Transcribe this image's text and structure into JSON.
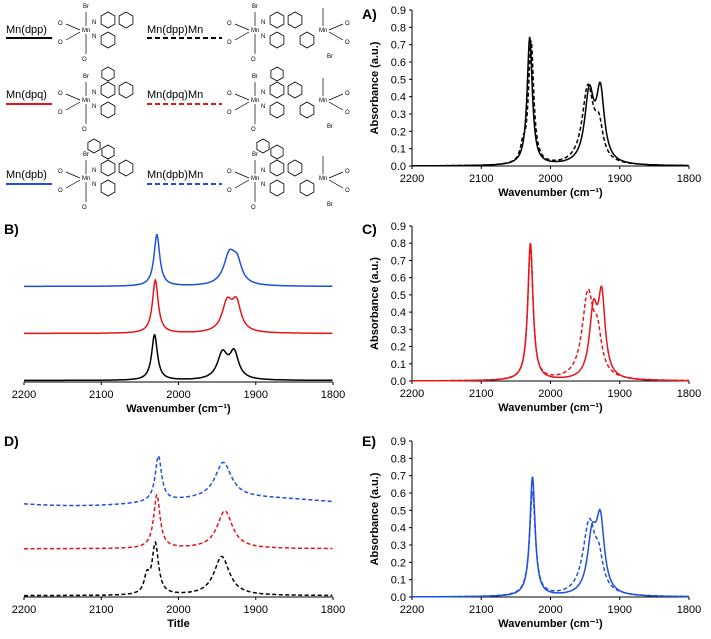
{
  "colors": {
    "black": "#000000",
    "red": "#e8141b",
    "blue": "#1f4fe0"
  },
  "legend": [
    {
      "label": "Mn(dpp)",
      "color": "black",
      "dashed": false
    },
    {
      "label": "Mn(dpp)Mn",
      "color": "black",
      "dashed": true
    },
    {
      "label": "Mn(dpq)",
      "color": "red",
      "dashed": false
    },
    {
      "label": "Mn(dpq)Mn",
      "color": "red",
      "dashed": true
    },
    {
      "label": "Mn(dpb)",
      "color": "blue",
      "dashed": false
    },
    {
      "label": "Mn(dpb)Mn",
      "color": "blue",
      "dashed": true
    }
  ],
  "structure_icons": [
    "mn-dpp-structure-icon",
    "mn-dpp-mn-structure-icon",
    "mn-dpq-structure-icon",
    "mn-dpq-mn-structure-icon",
    "mn-dpb-structure-icon",
    "mn-dpb-mn-structure-icon"
  ],
  "chem_labels": {
    "mn": "Mn",
    "br": "Br",
    "n": "N",
    "co": "CO"
  },
  "chart_data": [
    {
      "panel": "A)",
      "type": "line",
      "xlabel": "Wavenumber (cm⁻¹)",
      "ylabel": "Absorbance (a.u.)",
      "xlim": [
        2200,
        1800
      ],
      "ylim": [
        0,
        0.9
      ],
      "xticks": [
        "2200",
        "2100",
        "2000",
        "1900",
        "1800"
      ],
      "yticks": [
        "0.0",
        "0.1",
        "0.2",
        "0.3",
        "0.4",
        "0.5",
        "0.6",
        "0.7",
        "0.8",
        "0.9"
      ],
      "series": [
        {
          "name": "Mn(dpp)",
          "color": "black",
          "dashed": false,
          "peaks": [
            {
              "x": 2030,
              "h": 0.74,
              "w": 4.5
            },
            {
              "x": 1944,
              "h": 0.4,
              "w": 8
            },
            {
              "x": 1928,
              "h": 0.4,
              "w": 7
            }
          ]
        },
        {
          "name": "Mn(dpp)Mn",
          "color": "black",
          "dashed": true,
          "peaks": [
            {
              "x": 2028,
              "h": 0.71,
              "w": 4.5
            },
            {
              "x": 2040,
              "h": 0.08,
              "w": 4
            },
            {
              "x": 1946,
              "h": 0.44,
              "w": 10
            },
            {
              "x": 1930,
              "h": 0.18,
              "w": 7
            }
          ]
        }
      ]
    },
    {
      "panel": "B)",
      "type": "line",
      "xlabel": "Wavenumber (cm⁻¹)",
      "xlim": [
        2200,
        1800
      ],
      "xticks": [
        "2200",
        "2100",
        "2000",
        "1900",
        "1800"
      ],
      "series": [
        {
          "name": "Mn(dpb)",
          "color": "blue",
          "dashed": false,
          "offset": 2.0,
          "peaks": [
            {
              "x": 2028,
              "h": 0.68,
              "w": 4.5
            },
            {
              "x": 1934,
              "h": 0.4,
              "w": 9
            },
            {
              "x": 1924,
              "h": 0.25,
              "w": 7
            }
          ]
        },
        {
          "name": "Mn(dpq)",
          "color": "red",
          "dashed": false,
          "offset": 1.0,
          "peaks": [
            {
              "x": 2030,
              "h": 0.7,
              "w": 4.5
            },
            {
              "x": 1937,
              "h": 0.38,
              "w": 8
            },
            {
              "x": 1925,
              "h": 0.36,
              "w": 7
            }
          ]
        },
        {
          "name": "Mn(dpp)",
          "color": "black",
          "dashed": false,
          "offset": 0.0,
          "peaks": [
            {
              "x": 2031,
              "h": 0.6,
              "w": 4.5
            },
            {
              "x": 1943,
              "h": 0.34,
              "w": 8
            },
            {
              "x": 1928,
              "h": 0.34,
              "w": 7
            }
          ]
        }
      ]
    },
    {
      "panel": "C)",
      "type": "line",
      "xlabel": "Wavenumber (cm⁻¹)",
      "ylabel": "Absorbance (a.u.)",
      "xlim": [
        2200,
        1800
      ],
      "ylim": [
        0,
        0.9
      ],
      "xticks": [
        "2200",
        "2100",
        "2000",
        "1900",
        "1800"
      ],
      "yticks": [
        "0.0",
        "0.1",
        "0.2",
        "0.3",
        "0.4",
        "0.5",
        "0.6",
        "0.7",
        "0.8",
        "0.9"
      ],
      "series": [
        {
          "name": "Mn(dpq)",
          "color": "red",
          "dashed": false,
          "peaks": [
            {
              "x": 2029,
              "h": 0.8,
              "w": 4.5
            },
            {
              "x": 1938,
              "h": 0.38,
              "w": 7
            },
            {
              "x": 1926,
              "h": 0.45,
              "w": 6
            }
          ]
        },
        {
          "name": "Mn(dpq)Mn",
          "color": "red",
          "dashed": true,
          "peaks": [
            {
              "x": 2029,
              "h": 0.78,
              "w": 4.5
            },
            {
              "x": 1946,
              "h": 0.49,
              "w": 10
            },
            {
              "x": 1932,
              "h": 0.2,
              "w": 7
            }
          ]
        }
      ]
    },
    {
      "panel": "D)",
      "type": "line",
      "xlabel": "Title",
      "xlim": [
        2200,
        1800
      ],
      "xticks": [
        "2200",
        "2100",
        "2000",
        "1900",
        "1800"
      ],
      "series": [
        {
          "name": "Mn(dpb)Mn",
          "color": "blue",
          "dashed": true,
          "offset": 2.0,
          "peaks": [
            {
              "x": 2026,
              "h": 0.7,
              "w": 5
            },
            {
              "x": 1942,
              "h": 0.55,
              "w": 13
            }
          ]
        },
        {
          "name": "Mn(dpq)Mn",
          "color": "red",
          "dashed": true,
          "offset": 1.0,
          "peaks": [
            {
              "x": 2028,
              "h": 0.82,
              "w": 5
            },
            {
              "x": 1940,
              "h": 0.58,
              "w": 12
            }
          ]
        },
        {
          "name": "Mn(dpp)Mn",
          "color": "black",
          "dashed": true,
          "offset": 0.0,
          "peaks": [
            {
              "x": 2030,
              "h": 0.78,
              "w": 5
            },
            {
              "x": 2041,
              "h": 0.25,
              "w": 4
            },
            {
              "x": 1944,
              "h": 0.6,
              "w": 12
            }
          ]
        }
      ]
    },
    {
      "panel": "E)",
      "type": "line",
      "xlabel": "Wavenumber (cm⁻¹)",
      "ylabel": "Absorbance (a.u.)",
      "xlim": [
        2200,
        1800
      ],
      "ylim": [
        0,
        0.9
      ],
      "xticks": [
        "2200",
        "2100",
        "2000",
        "1900",
        "1800"
      ],
      "yticks": [
        "0.0",
        "0.1",
        "0.2",
        "0.3",
        "0.4",
        "0.5",
        "0.6",
        "0.7",
        "0.8",
        "0.9"
      ],
      "series": [
        {
          "name": "Mn(dpb)",
          "color": "blue",
          "dashed": false,
          "peaks": [
            {
              "x": 2026,
              "h": 0.69,
              "w": 4.5
            },
            {
              "x": 1940,
              "h": 0.32,
              "w": 8
            },
            {
              "x": 1928,
              "h": 0.4,
              "w": 7
            }
          ]
        },
        {
          "name": "Mn(dpb)Mn",
          "color": "blue",
          "dashed": true,
          "peaks": [
            {
              "x": 2026,
              "h": 0.6,
              "w": 5
            },
            {
              "x": 1944,
              "h": 0.42,
              "w": 11
            },
            {
              "x": 1930,
              "h": 0.15,
              "w": 7
            }
          ]
        }
      ]
    }
  ]
}
